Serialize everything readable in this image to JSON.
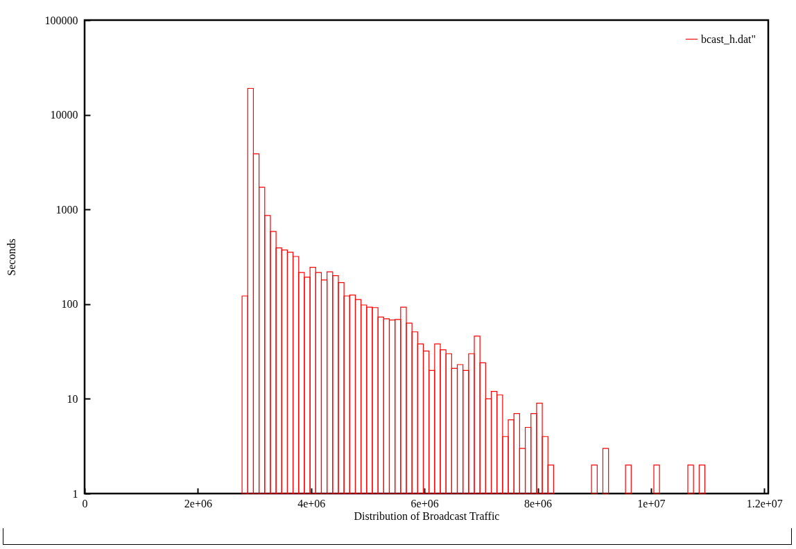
{
  "chart_data": {
    "type": "histogram",
    "xlabel": "Distribution of Broadcast Traffic",
    "ylabel": "Seconds",
    "bins": [
      2780000,
      2880000,
      2980000,
      3080000,
      3180000,
      3280000,
      3380000,
      3480000,
      3580000,
      3680000,
      3780000,
      3880000,
      3980000,
      4080000,
      4180000,
      4280000,
      4380000,
      4480000,
      4580000,
      4680000,
      4780000,
      4880000,
      4980000,
      5080000,
      5180000,
      5280000,
      5380000,
      5480000,
      5580000,
      5680000,
      5780000,
      5880000,
      5980000,
      6080000,
      6180000,
      6280000,
      6380000,
      6480000,
      6580000,
      6680000,
      6780000,
      6880000,
      6980000,
      7080000,
      7180000,
      7280000,
      7380000,
      7480000,
      7580000,
      7680000,
      7780000,
      7880000,
      7980000,
      8080000,
      8180000,
      8280000,
      8950000,
      9050000,
      9150000,
      9250000,
      9550000,
      9650000,
      10050000,
      10150000,
      10650000,
      10750000,
      10850000,
      10950000
    ],
    "series": [
      {
        "name": "bcast_h.dat\"",
        "color": "#ff0000",
        "values": [
          122,
          19000,
          3870,
          1720,
          865,
          587,
          393,
          373,
          354,
          319,
          216,
          193,
          245,
          216,
          180,
          220,
          200,
          169,
          122,
          125,
          112,
          98,
          93,
          92,
          73,
          70,
          68,
          69,
          93,
          63,
          51,
          38,
          32,
          20,
          38,
          33,
          30,
          21,
          23,
          20,
          30,
          46,
          24,
          10,
          12,
          11,
          4,
          6,
          7,
          3,
          5,
          7,
          9,
          4,
          2,
          null,
          2,
          null,
          3,
          null,
          2,
          null,
          2,
          null,
          2,
          null,
          2
        ]
      }
    ],
    "xlim": [
      0,
      12070000
    ],
    "xticks": [
      0,
      {
        "value": 2000000,
        "label": "2e+06"
      },
      {
        "value": 4000000,
        "label": "4e+06"
      },
      {
        "value": 6000000,
        "label": "6e+06"
      },
      {
        "value": 8000000,
        "label": "8e+06"
      },
      {
        "value": 10000000,
        "label": "1e+07"
      },
      {
        "value": 12000000,
        "label": "1.2e+07"
      }
    ],
    "ylim": [
      1,
      100000
    ],
    "yticks": [
      1,
      10,
      100,
      1000,
      10000,
      100000
    ],
    "log": true,
    "grid": false,
    "legend": "top right"
  }
}
